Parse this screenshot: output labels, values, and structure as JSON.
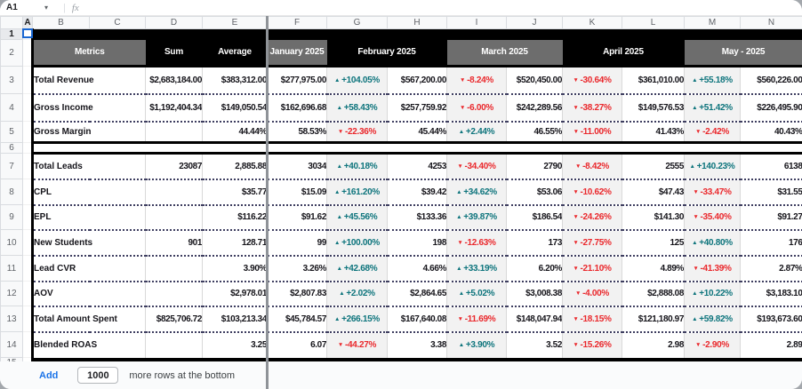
{
  "formula_bar": {
    "cell_reference": "A1"
  },
  "icons": {
    "up_arrow": "▲",
    "down_arrow": "▼",
    "name_box_caret": "▾",
    "formula_fx": "fx",
    "divider": "|"
  },
  "colors": {
    "positive_teal": "#0d747c",
    "negative_red": "#ea282c",
    "header_gray": "#6d6d6d",
    "header_black": "#000000",
    "change_column_bg": "#f2f2f2",
    "selection_blue": "#1967d2",
    "link_blue": "#1a73e8"
  },
  "grid": {
    "column_letters": [
      "A",
      "B",
      "C",
      "D",
      "E",
      "F",
      "G",
      "H",
      "I",
      "J",
      "K",
      "L",
      "M",
      "N"
    ],
    "row_numbers": [
      "1",
      "2",
      "3",
      "4",
      "5",
      "6",
      "7",
      "8",
      "9",
      "10",
      "11",
      "12",
      "13",
      "14",
      "15"
    ]
  },
  "table": {
    "headers": [
      {
        "label": "Metrics",
        "tone": "gray",
        "span": 2
      },
      {
        "label": "Sum",
        "tone": "black",
        "span": 1
      },
      {
        "label": "Average",
        "tone": "black",
        "span": 1
      },
      {
        "label": "January 2025",
        "tone": "gray",
        "span": 1
      },
      {
        "label": "February 2025",
        "tone": "black",
        "span": 2
      },
      {
        "label": "March 2025",
        "tone": "gray",
        "span": 2
      },
      {
        "label": "April 2025",
        "tone": "black",
        "span": 2
      },
      {
        "label": "May - 2025",
        "tone": "gray",
        "span": 2
      }
    ],
    "sections": [
      {
        "rows": [
          {
            "metric": "Total Revenue",
            "cells": [
              {
                "t": "$2,683,184.00"
              },
              {
                "t": "$383,312.00"
              },
              {
                "t": "$277,975.00"
              },
              {
                "t": "+104.05%",
                "dir": "up"
              },
              {
                "t": "$567,200.00"
              },
              {
                "t": "-8.24%",
                "dir": "down"
              },
              {
                "t": "$520,450.00"
              },
              {
                "t": "-30.64%",
                "dir": "down"
              },
              {
                "t": "$361,010.00"
              },
              {
                "t": "+55.18%",
                "dir": "up"
              },
              {
                "t": "$560,226.00"
              }
            ]
          },
          {
            "metric": "Gross Income",
            "cells": [
              {
                "t": "$1,192,404.34"
              },
              {
                "t": "$149,050.54"
              },
              {
                "t": "$162,696.68"
              },
              {
                "t": "+58.43%",
                "dir": "up"
              },
              {
                "t": "$257,759.92"
              },
              {
                "t": "-6.00%",
                "dir": "down"
              },
              {
                "t": "$242,289.56"
              },
              {
                "t": "-38.27%",
                "dir": "down"
              },
              {
                "t": "$149,576.53"
              },
              {
                "t": "+51.42%",
                "dir": "up"
              },
              {
                "t": "$226,495.90"
              }
            ]
          },
          {
            "metric": "Gross Margin",
            "cells": [
              {
                "t": ""
              },
              {
                "t": "44.44%"
              },
              {
                "t": "58.53%"
              },
              {
                "t": "-22.36%",
                "dir": "down"
              },
              {
                "t": "45.44%"
              },
              {
                "t": "+2.44%",
                "dir": "up"
              },
              {
                "t": "46.55%"
              },
              {
                "t": "-11.00%",
                "dir": "down"
              },
              {
                "t": "41.43%"
              },
              {
                "t": "-2.42%",
                "dir": "down"
              },
              {
                "t": "40.43%"
              }
            ]
          }
        ]
      },
      {
        "rows": [
          {
            "metric": "Total Leads",
            "cells": [
              {
                "t": "23087"
              },
              {
                "t": "2,885.88"
              },
              {
                "t": "3034"
              },
              {
                "t": "+40.18%",
                "dir": "up"
              },
              {
                "t": "4253"
              },
              {
                "t": "-34.40%",
                "dir": "down"
              },
              {
                "t": "2790"
              },
              {
                "t": "-8.42%",
                "dir": "down"
              },
              {
                "t": "2555"
              },
              {
                "t": "+140.23%",
                "dir": "up"
              },
              {
                "t": "6138"
              }
            ]
          },
          {
            "metric": "CPL",
            "cells": [
              {
                "t": ""
              },
              {
                "t": "$35.77"
              },
              {
                "t": "$15.09"
              },
              {
                "t": "+161.20%",
                "dir": "up"
              },
              {
                "t": "$39.42"
              },
              {
                "t": "+34.62%",
                "dir": "up"
              },
              {
                "t": "$53.06"
              },
              {
                "t": "-10.62%",
                "dir": "down"
              },
              {
                "t": "$47.43"
              },
              {
                "t": "-33.47%",
                "dir": "down"
              },
              {
                "t": "$31.55"
              }
            ]
          },
          {
            "metric": "EPL",
            "cells": [
              {
                "t": ""
              },
              {
                "t": "$116.22"
              },
              {
                "t": "$91.62"
              },
              {
                "t": "+45.56%",
                "dir": "up"
              },
              {
                "t": "$133.36"
              },
              {
                "t": "+39.87%",
                "dir": "up"
              },
              {
                "t": "$186.54"
              },
              {
                "t": "-24.26%",
                "dir": "down"
              },
              {
                "t": "$141.30"
              },
              {
                "t": "-35.40%",
                "dir": "down"
              },
              {
                "t": "$91.27"
              }
            ]
          },
          {
            "metric": "New Students",
            "cells": [
              {
                "t": "901"
              },
              {
                "t": "128.71"
              },
              {
                "t": "99"
              },
              {
                "t": "+100.00%",
                "dir": "up"
              },
              {
                "t": "198"
              },
              {
                "t": "-12.63%",
                "dir": "down"
              },
              {
                "t": "173"
              },
              {
                "t": "-27.75%",
                "dir": "down"
              },
              {
                "t": "125"
              },
              {
                "t": "+40.80%",
                "dir": "up"
              },
              {
                "t": "176"
              }
            ]
          },
          {
            "metric": "Lead CVR",
            "cells": [
              {
                "t": ""
              },
              {
                "t": "3.90%"
              },
              {
                "t": "3.26%"
              },
              {
                "t": "+42.68%",
                "dir": "up"
              },
              {
                "t": "4.66%"
              },
              {
                "t": "+33.19%",
                "dir": "up"
              },
              {
                "t": "6.20%"
              },
              {
                "t": "-21.10%",
                "dir": "down"
              },
              {
                "t": "4.89%"
              },
              {
                "t": "-41.39%",
                "dir": "down"
              },
              {
                "t": "2.87%"
              }
            ]
          },
          {
            "metric": "AOV",
            "cells": [
              {
                "t": ""
              },
              {
                "t": "$2,978.01"
              },
              {
                "t": "$2,807.83"
              },
              {
                "t": "+2.02%",
                "dir": "up"
              },
              {
                "t": "$2,864.65"
              },
              {
                "t": "+5.02%",
                "dir": "up"
              },
              {
                "t": "$3,008.38"
              },
              {
                "t": "-4.00%",
                "dir": "down"
              },
              {
                "t": "$2,888.08"
              },
              {
                "t": "+10.22%",
                "dir": "up"
              },
              {
                "t": "$3,183.10"
              }
            ]
          },
          {
            "metric": "Total Amount Spent",
            "cells": [
              {
                "t": "$825,706.72"
              },
              {
                "t": "$103,213.34"
              },
              {
                "t": "$45,784.57"
              },
              {
                "t": "+266.15%",
                "dir": "up"
              },
              {
                "t": "$167,640.08"
              },
              {
                "t": "-11.69%",
                "dir": "down"
              },
              {
                "t": "$148,047.94"
              },
              {
                "t": "-18.15%",
                "dir": "down"
              },
              {
                "t": "$121,180.97"
              },
              {
                "t": "+59.82%",
                "dir": "up"
              },
              {
                "t": "$193,673.60"
              }
            ]
          },
          {
            "metric": "Blended ROAS",
            "cells": [
              {
                "t": ""
              },
              {
                "t": "3.25"
              },
              {
                "t": "6.07"
              },
              {
                "t": "-44.27%",
                "dir": "down"
              },
              {
                "t": "3.38"
              },
              {
                "t": "+3.90%",
                "dir": "up"
              },
              {
                "t": "3.52"
              },
              {
                "t": "-15.26%",
                "dir": "down"
              },
              {
                "t": "2.98"
              },
              {
                "t": "-2.90%",
                "dir": "down"
              },
              {
                "t": "2.89"
              }
            ]
          }
        ]
      }
    ]
  },
  "footer": {
    "add_label": "Add",
    "rows_value": "1000",
    "suffix_label": "more rows at the bottom"
  }
}
